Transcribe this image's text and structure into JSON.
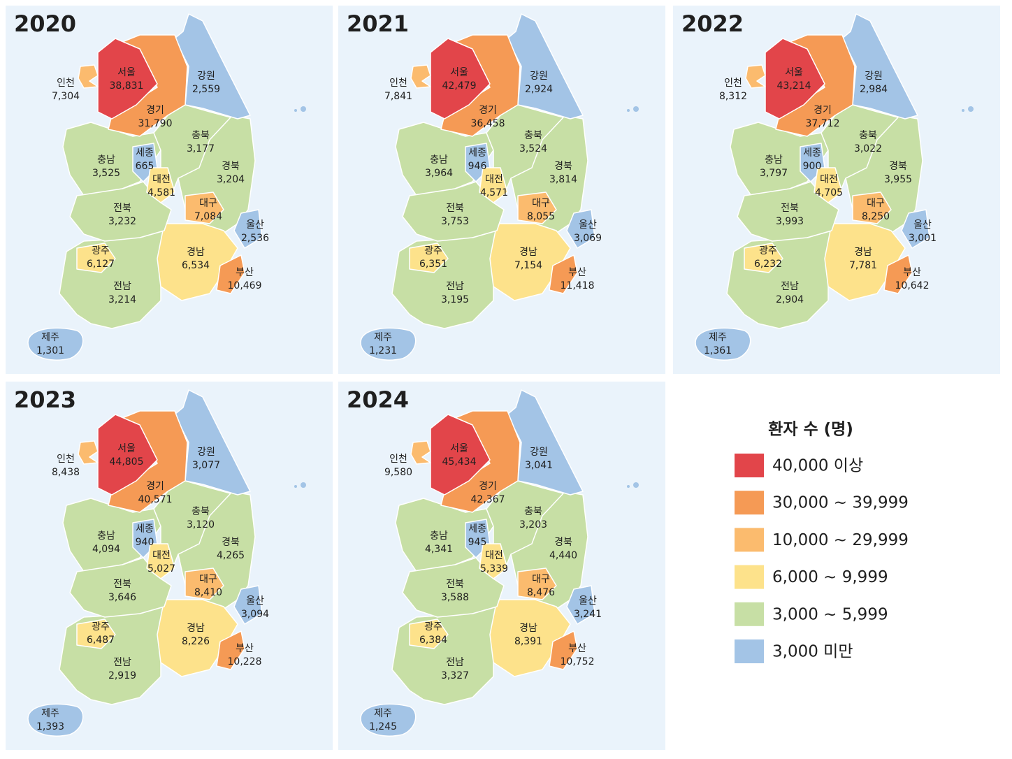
{
  "panels": [
    {
      "year": "2020",
      "regions": [
        {
          "name": "전남",
          "value": "3,214",
          "color": "#c7dfa5"
        },
        {
          "name": "광주",
          "value": "6,127",
          "color": "#fde28b"
        },
        {
          "name": "경북",
          "value": "3,204",
          "color": "#c7dfa5"
        },
        {
          "name": "대구",
          "value": "7,084",
          "color": "#fbbb6e"
        },
        {
          "name": "울산",
          "value": "2,536",
          "color": "#a3c4e6"
        },
        {
          "name": "경남",
          "value": "6,534",
          "color": "#fde28b"
        },
        {
          "name": "부산",
          "value": "10,469",
          "color": "#f59a55"
        },
        {
          "name": "충남",
          "value": "3,525",
          "color": "#c7dfa5"
        },
        {
          "name": "전북",
          "value": "3,232",
          "color": "#c7dfa5"
        },
        {
          "name": "충북",
          "value": "3,177",
          "color": "#c7dfa5"
        },
        {
          "name": "세종",
          "value": "665",
          "color": "#a3c4e6"
        },
        {
          "name": "대전",
          "value": "4,581",
          "color": "#fde28b"
        },
        {
          "name": "강원",
          "value": "2,559",
          "color": "#a3c4e6"
        },
        {
          "name": "경기",
          "value": "31,790",
          "color": "#f59a55"
        },
        {
          "name": "서울",
          "value": "38,831",
          "color": "#e2454a"
        },
        {
          "name": "인천",
          "value": "7,304",
          "color": "#fbbb6e"
        },
        {
          "name": "제주",
          "value": "1,301",
          "color": "#a3c4e6"
        }
      ]
    },
    {
      "year": "2021",
      "regions": [
        {
          "name": "전남",
          "value": "3,195",
          "color": "#c7dfa5"
        },
        {
          "name": "광주",
          "value": "6,351",
          "color": "#fde28b"
        },
        {
          "name": "경북",
          "value": "3,814",
          "color": "#c7dfa5"
        },
        {
          "name": "대구",
          "value": "8,055",
          "color": "#fbbb6e"
        },
        {
          "name": "울산",
          "value": "3,069",
          "color": "#a3c4e6"
        },
        {
          "name": "경남",
          "value": "7,154",
          "color": "#fde28b"
        },
        {
          "name": "부산",
          "value": "11,418",
          "color": "#f59a55"
        },
        {
          "name": "충남",
          "value": "3,964",
          "color": "#c7dfa5"
        },
        {
          "name": "전북",
          "value": "3,753",
          "color": "#c7dfa5"
        },
        {
          "name": "충북",
          "value": "3,524",
          "color": "#c7dfa5"
        },
        {
          "name": "세종",
          "value": "946",
          "color": "#a3c4e6"
        },
        {
          "name": "대전",
          "value": "4,571",
          "color": "#fde28b"
        },
        {
          "name": "강원",
          "value": "2,924",
          "color": "#a3c4e6"
        },
        {
          "name": "경기",
          "value": "36,458",
          "color": "#f59a55"
        },
        {
          "name": "서울",
          "value": "42,479",
          "color": "#e2454a"
        },
        {
          "name": "인천",
          "value": "7,841",
          "color": "#fbbb6e"
        },
        {
          "name": "제주",
          "value": "1,231",
          "color": "#a3c4e6"
        }
      ]
    },
    {
      "year": "2022",
      "regions": [
        {
          "name": "전남",
          "value": "2,904",
          "color": "#c7dfa5"
        },
        {
          "name": "광주",
          "value": "6,232",
          "color": "#fde28b"
        },
        {
          "name": "경북",
          "value": "3,955",
          "color": "#c7dfa5"
        },
        {
          "name": "대구",
          "value": "8,250",
          "color": "#fbbb6e"
        },
        {
          "name": "울산",
          "value": "3,001",
          "color": "#a3c4e6"
        },
        {
          "name": "경남",
          "value": "7,781",
          "color": "#fde28b"
        },
        {
          "name": "부산",
          "value": "10,642",
          "color": "#f59a55"
        },
        {
          "name": "충남",
          "value": "3,797",
          "color": "#c7dfa5"
        },
        {
          "name": "전북",
          "value": "3,993",
          "color": "#c7dfa5"
        },
        {
          "name": "충북",
          "value": "3,022",
          "color": "#c7dfa5"
        },
        {
          "name": "세종",
          "value": "900",
          "color": "#a3c4e6"
        },
        {
          "name": "대전",
          "value": "4,705",
          "color": "#fde28b"
        },
        {
          "name": "강원",
          "value": "2,984",
          "color": "#a3c4e6"
        },
        {
          "name": "경기",
          "value": "37,712",
          "color": "#f59a55"
        },
        {
          "name": "서울",
          "value": "43,214",
          "color": "#e2454a"
        },
        {
          "name": "인천",
          "value": "8,312",
          "color": "#fbbb6e"
        },
        {
          "name": "제주",
          "value": "1,361",
          "color": "#a3c4e6"
        }
      ]
    },
    {
      "year": "2023",
      "regions": [
        {
          "name": "전남",
          "value": "2,919",
          "color": "#c7dfa5"
        },
        {
          "name": "광주",
          "value": "6,487",
          "color": "#fde28b"
        },
        {
          "name": "경북",
          "value": "4,265",
          "color": "#c7dfa5"
        },
        {
          "name": "대구",
          "value": "8,410",
          "color": "#fbbb6e"
        },
        {
          "name": "울산",
          "value": "3,094",
          "color": "#a3c4e6"
        },
        {
          "name": "경남",
          "value": "8,226",
          "color": "#fde28b"
        },
        {
          "name": "부산",
          "value": "10,228",
          "color": "#f59a55"
        },
        {
          "name": "충남",
          "value": "4,094",
          "color": "#c7dfa5"
        },
        {
          "name": "전북",
          "value": "3,646",
          "color": "#c7dfa5"
        },
        {
          "name": "충북",
          "value": "3,120",
          "color": "#c7dfa5"
        },
        {
          "name": "세종",
          "value": "940",
          "color": "#a3c4e6"
        },
        {
          "name": "대전",
          "value": "5,027",
          "color": "#fde28b"
        },
        {
          "name": "강원",
          "value": "3,077",
          "color": "#a3c4e6"
        },
        {
          "name": "경기",
          "value": "40,571",
          "color": "#f59a55"
        },
        {
          "name": "서울",
          "value": "44,805",
          "color": "#e2454a"
        },
        {
          "name": "인천",
          "value": "8,438",
          "color": "#fbbb6e"
        },
        {
          "name": "제주",
          "value": "1,393",
          "color": "#a3c4e6"
        }
      ]
    },
    {
      "year": "2024",
      "regions": [
        {
          "name": "전남",
          "value": "3,327",
          "color": "#c7dfa5"
        },
        {
          "name": "광주",
          "value": "6,384",
          "color": "#fde28b"
        },
        {
          "name": "경북",
          "value": "4,440",
          "color": "#c7dfa5"
        },
        {
          "name": "대구",
          "value": "8,476",
          "color": "#fbbb6e"
        },
        {
          "name": "울산",
          "value": "3,241",
          "color": "#a3c4e6"
        },
        {
          "name": "경남",
          "value": "8,391",
          "color": "#fde28b"
        },
        {
          "name": "부산",
          "value": "10,752",
          "color": "#f59a55"
        },
        {
          "name": "충남",
          "value": "4,341",
          "color": "#c7dfa5"
        },
        {
          "name": "전북",
          "value": "3,588",
          "color": "#c7dfa5"
        },
        {
          "name": "충북",
          "value": "3,203",
          "color": "#c7dfa5"
        },
        {
          "name": "세종",
          "value": "945",
          "color": "#a3c4e6"
        },
        {
          "name": "대전",
          "value": "5,339",
          "color": "#fde28b"
        },
        {
          "name": "강원",
          "value": "3,041",
          "color": "#a3c4e6"
        },
        {
          "name": "경기",
          "value": "42,367",
          "color": "#f59a55"
        },
        {
          "name": "서울",
          "value": "45,434",
          "color": "#e2454a"
        },
        {
          "name": "인천",
          "value": "9,580",
          "color": "#fbbb6e"
        },
        {
          "name": "제주",
          "value": "1,245",
          "color": "#a3c4e6"
        }
      ]
    }
  ],
  "legend": {
    "title": "환자 수 (명)",
    "items": [
      {
        "label": "40,000 이상",
        "color": "#e2454a"
      },
      {
        "label": "30,000 ~ 39,999",
        "color": "#f59a55"
      },
      {
        "label": "10,000 ~ 29,999",
        "color": "#fbbb6e"
      },
      {
        "label": "6,000 ~ 9,999",
        "color": "#fde28b"
      },
      {
        "label": "3,000 ~ 5,999",
        "color": "#c7dfa5"
      },
      {
        "label": "3,000 미만",
        "color": "#a3c4e6"
      }
    ]
  }
}
